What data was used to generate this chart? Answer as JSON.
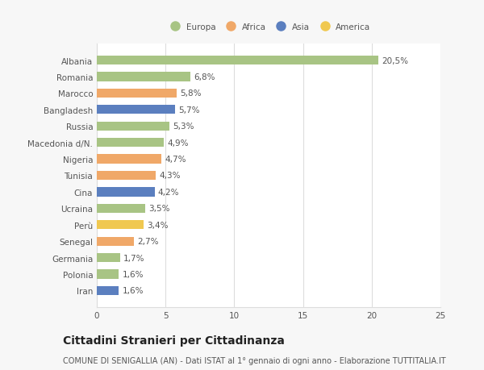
{
  "countries": [
    "Albania",
    "Romania",
    "Marocco",
    "Bangladesh",
    "Russia",
    "Macedonia d/N.",
    "Nigeria",
    "Tunisia",
    "Cina",
    "Ucraina",
    "Perù",
    "Senegal",
    "Germania",
    "Polonia",
    "Iran"
  ],
  "values": [
    20.5,
    6.8,
    5.8,
    5.7,
    5.3,
    4.9,
    4.7,
    4.3,
    4.2,
    3.5,
    3.4,
    2.7,
    1.7,
    1.6,
    1.6
  ],
  "labels": [
    "20,5%",
    "6,8%",
    "5,8%",
    "5,7%",
    "5,3%",
    "4,9%",
    "4,7%",
    "4,3%",
    "4,2%",
    "3,5%",
    "3,4%",
    "2,7%",
    "1,7%",
    "1,6%",
    "1,6%"
  ],
  "colors": [
    "#a8c484",
    "#a8c484",
    "#f0a868",
    "#5b7fbf",
    "#a8c484",
    "#a8c484",
    "#f0a868",
    "#f0a868",
    "#5b7fbf",
    "#a8c484",
    "#f0c850",
    "#f0a868",
    "#a8c484",
    "#a8c484",
    "#5b7fbf"
  ],
  "legend": [
    {
      "label": "Europa",
      "color": "#a8c484"
    },
    {
      "label": "Africa",
      "color": "#f0a868"
    },
    {
      "label": "Asia",
      "color": "#5b7fbf"
    },
    {
      "label": "America",
      "color": "#f0c850"
    }
  ],
  "xlim": [
    0,
    25
  ],
  "xticks": [
    0,
    5,
    10,
    15,
    20,
    25
  ],
  "title": "Cittadini Stranieri per Cittadinanza",
  "subtitle": "COMUNE DI SENIGALLIA (AN) - Dati ISTAT al 1° gennaio di ogni anno - Elaborazione TUTTITALIA.IT",
  "bg_color": "#f7f7f7",
  "plot_bg_color": "#ffffff",
  "grid_color": "#dddddd",
  "text_color": "#555555",
  "label_fontsize": 7.5,
  "tick_fontsize": 7.5,
  "title_fontsize": 10,
  "subtitle_fontsize": 7,
  "bar_height": 0.55
}
